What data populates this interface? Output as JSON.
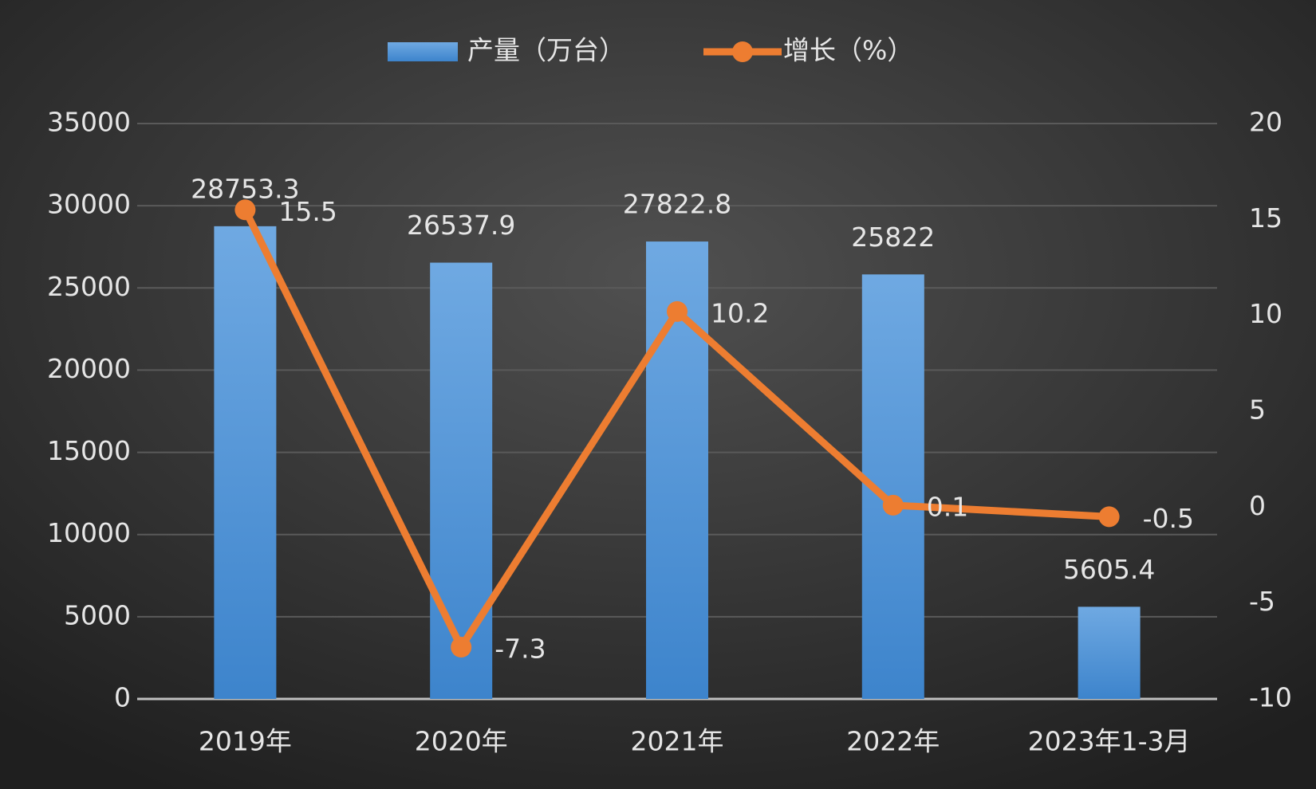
{
  "chart_data": {
    "type": "bar",
    "categories": [
      "2019年",
      "2020年",
      "2021年",
      "2022年",
      "2023年1-3月"
    ],
    "series": [
      {
        "name": "产量（万台）",
        "color": "#4a90d9",
        "values": [
          28753.3,
          26537.9,
          27822.8,
          25822,
          5605.4
        ]
      },
      {
        "name": "增长（%）",
        "color": "#ed7d31",
        "values": [
          15.5,
          -7.3,
          10.2,
          0.1,
          -0.5
        ],
        "axis": "y2"
      }
    ],
    "ylim": [
      0,
      35000
    ],
    "yticks": [
      0,
      5000,
      10000,
      15000,
      20000,
      25000,
      30000,
      35000
    ],
    "y2lim": [
      -10,
      20
    ],
    "y2ticks": [
      -10,
      -5,
      0,
      5,
      10,
      15,
      20
    ],
    "grid": true,
    "legend": "top"
  }
}
